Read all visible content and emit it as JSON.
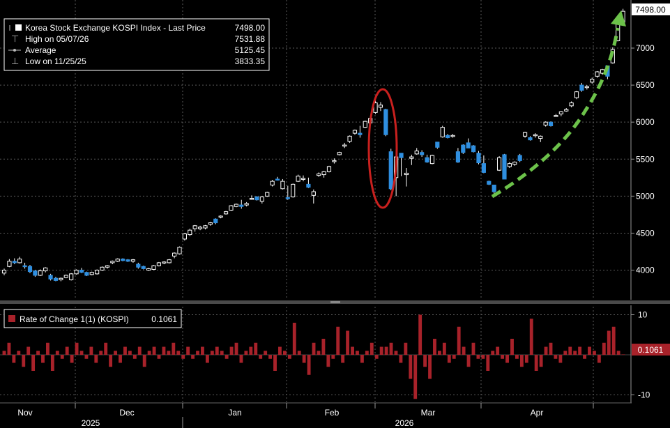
{
  "chart_data": [
    {
      "type": "candlestick",
      "title": "Korea Stock Exchange KOSPI Index - Last Price",
      "last_price": "7498.00",
      "last_price_tag": "7498.00",
      "legend": {
        "last_label": "Korea Stock Exchange KOSPI Index - Last Price",
        "last_value": "7498.00",
        "high_label": "High on 05/07/26",
        "high_value": "7531.88",
        "avg_label": "Average",
        "avg_value": "5125.45",
        "low_label": "Low on 11/25/25",
        "low_value": "3833.35"
      },
      "ylim": [
        3600,
        7650
      ],
      "yticks": [
        "4000",
        "4500",
        "5000",
        "5500",
        "6000",
        "6500",
        "7000"
      ],
      "ytick_values": [
        4000,
        4500,
        5000,
        5500,
        6000,
        6500,
        7000
      ],
      "grid": true,
      "colors": {
        "up": "#ffffff",
        "down": "#2f8fe0",
        "circle": "#c8201e",
        "arrow": "#6cc24a"
      },
      "candles": [
        {
          "o": 3960,
          "h": 4020,
          "l": 3930,
          "c": 4000
        },
        {
          "o": 4050,
          "h": 4150,
          "l": 4040,
          "c": 4120
        },
        {
          "o": 4120,
          "h": 4160,
          "l": 4080,
          "c": 4100
        },
        {
          "o": 4100,
          "h": 4180,
          "l": 4090,
          "c": 4150
        },
        {
          "o": 4060,
          "h": 4100,
          "l": 4020,
          "c": 4050
        },
        {
          "o": 4050,
          "h": 4070,
          "l": 3960,
          "c": 3980
        },
        {
          "o": 3990,
          "h": 4000,
          "l": 3910,
          "c": 3930
        },
        {
          "o": 3930,
          "h": 4010,
          "l": 3920,
          "c": 3990
        },
        {
          "o": 3990,
          "h": 4040,
          "l": 3970,
          "c": 4030
        },
        {
          "o": 3930,
          "h": 3950,
          "l": 3860,
          "c": 3880
        },
        {
          "o": 3890,
          "h": 3910,
          "l": 3850,
          "c": 3860
        },
        {
          "o": 3870,
          "h": 3900,
          "l": 3850,
          "c": 3890
        },
        {
          "o": 3900,
          "h": 3940,
          "l": 3890,
          "c": 3930
        },
        {
          "o": 3870,
          "h": 3960,
          "l": 3860,
          "c": 3950
        },
        {
          "o": 3950,
          "h": 4010,
          "l": 3940,
          "c": 4000
        },
        {
          "o": 4000,
          "h": 4030,
          "l": 3960,
          "c": 3970
        },
        {
          "o": 3970,
          "h": 3980,
          "l": 3920,
          "c": 3930
        },
        {
          "o": 3940,
          "h": 3980,
          "l": 3930,
          "c": 3970
        },
        {
          "o": 3950,
          "h": 4010,
          "l": 3940,
          "c": 4000
        },
        {
          "o": 4000,
          "h": 4050,
          "l": 3990,
          "c": 4040
        },
        {
          "o": 4040,
          "h": 4070,
          "l": 4020,
          "c": 4060
        },
        {
          "o": 4100,
          "h": 4130,
          "l": 4080,
          "c": 4120
        },
        {
          "o": 4120,
          "h": 4160,
          "l": 4110,
          "c": 4150
        },
        {
          "o": 4150,
          "h": 4160,
          "l": 4120,
          "c": 4130
        },
        {
          "o": 4140,
          "h": 4150,
          "l": 4110,
          "c": 4120
        },
        {
          "o": 4120,
          "h": 4150,
          "l": 4100,
          "c": 4140
        },
        {
          "o": 4080,
          "h": 4100,
          "l": 4020,
          "c": 4040
        },
        {
          "o": 4050,
          "h": 4060,
          "l": 4010,
          "c": 4020
        },
        {
          "o": 4000,
          "h": 4030,
          "l": 3990,
          "c": 4020
        },
        {
          "o": 4010,
          "h": 4070,
          "l": 4000,
          "c": 4060
        },
        {
          "o": 4060,
          "h": 4110,
          "l": 4050,
          "c": 4100
        },
        {
          "o": 4100,
          "h": 4120,
          "l": 4080,
          "c": 4110
        },
        {
          "o": 4100,
          "h": 4150,
          "l": 4090,
          "c": 4140
        },
        {
          "o": 4190,
          "h": 4240,
          "l": 4160,
          "c": 4230
        },
        {
          "o": 4220,
          "h": 4320,
          "l": 4210,
          "c": 4310
        },
        {
          "o": 4420,
          "h": 4500,
          "l": 4400,
          "c": 4490
        },
        {
          "o": 4480,
          "h": 4560,
          "l": 4460,
          "c": 4540
        },
        {
          "o": 4560,
          "h": 4610,
          "l": 4520,
          "c": 4600
        },
        {
          "o": 4560,
          "h": 4600,
          "l": 4540,
          "c": 4580
        },
        {
          "o": 4570,
          "h": 4610,
          "l": 4550,
          "c": 4600
        },
        {
          "o": 4620,
          "h": 4650,
          "l": 4600,
          "c": 4640
        },
        {
          "o": 4690,
          "h": 4700,
          "l": 4620,
          "c": 4640
        },
        {
          "o": 4720,
          "h": 4740,
          "l": 4700,
          "c": 4730
        },
        {
          "o": 4760,
          "h": 4800,
          "l": 4750,
          "c": 4790
        },
        {
          "o": 4810,
          "h": 4880,
          "l": 4800,
          "c": 4870
        },
        {
          "o": 4860,
          "h": 4900,
          "l": 4850,
          "c": 4890
        },
        {
          "o": 4880,
          "h": 4950,
          "l": 4830,
          "c": 4860
        },
        {
          "o": 4880,
          "h": 4920,
          "l": 4860,
          "c": 4900
        },
        {
          "o": 4960,
          "h": 5010,
          "l": 4950,
          "c": 4970
        },
        {
          "o": 4990,
          "h": 5000,
          "l": 4940,
          "c": 4950
        },
        {
          "o": 4930,
          "h": 5000,
          "l": 4900,
          "c": 4990
        },
        {
          "o": 5000,
          "h": 5060,
          "l": 4990,
          "c": 5050
        },
        {
          "o": 5150,
          "h": 5220,
          "l": 5130,
          "c": 5200
        },
        {
          "o": 5230,
          "h": 5260,
          "l": 5210,
          "c": 5220
        },
        {
          "o": 5100,
          "h": 5230,
          "l": 5090,
          "c": 5200
        },
        {
          "o": 4980,
          "h": 5140,
          "l": 4950,
          "c": 4970
        },
        {
          "o": 4990,
          "h": 5170,
          "l": 4980,
          "c": 5160
        },
        {
          "o": 5200,
          "h": 5290,
          "l": 5190,
          "c": 5270
        },
        {
          "o": 5230,
          "h": 5280,
          "l": 5200,
          "c": 5240
        },
        {
          "o": 5160,
          "h": 5250,
          "l": 5110,
          "c": 5120
        },
        {
          "o": 5010,
          "h": 5090,
          "l": 4900,
          "c": 5060
        },
        {
          "o": 5280,
          "h": 5320,
          "l": 5260,
          "c": 5300
        },
        {
          "o": 5290,
          "h": 5340,
          "l": 5250,
          "c": 5330
        },
        {
          "o": 5330,
          "h": 5410,
          "l": 5320,
          "c": 5400
        },
        {
          "o": 5470,
          "h": 5510,
          "l": 5440,
          "c": 5480
        },
        {
          "o": 5560,
          "h": 5600,
          "l": 5550,
          "c": 5590
        },
        {
          "o": 5680,
          "h": 5720,
          "l": 5650,
          "c": 5690
        },
        {
          "o": 5740,
          "h": 5820,
          "l": 5720,
          "c": 5810
        },
        {
          "o": 5850,
          "h": 5900,
          "l": 5830,
          "c": 5890
        },
        {
          "o": 5850,
          "h": 5950,
          "l": 5790,
          "c": 5830
        },
        {
          "o": 5930,
          "h": 6020,
          "l": 5920,
          "c": 6010
        },
        {
          "o": 5990,
          "h": 6080,
          "l": 5970,
          "c": 6050
        },
        {
          "o": 6130,
          "h": 6290,
          "l": 6110,
          "c": 6260
        },
        {
          "o": 6200,
          "h": 6270,
          "l": 6150,
          "c": 6230
        },
        {
          "o": 6170,
          "h": 6180,
          "l": 5810,
          "c": 5830
        },
        {
          "o": 5600,
          "h": 5640,
          "l": 5080,
          "c": 5100
        },
        {
          "o": 5250,
          "h": 5610,
          "l": 5000,
          "c": 5530
        },
        {
          "o": 5580,
          "h": 5570,
          "l": 5270,
          "c": 5520
        },
        {
          "o": 5290,
          "h": 5380,
          "l": 5130,
          "c": 5310
        },
        {
          "o": 5510,
          "h": 5560,
          "l": 5420,
          "c": 5530
        },
        {
          "o": 5570,
          "h": 5650,
          "l": 5560,
          "c": 5610
        },
        {
          "o": 5590,
          "h": 5620,
          "l": 5530,
          "c": 5560
        },
        {
          "o": 5520,
          "h": 5560,
          "l": 5450,
          "c": 5460
        },
        {
          "o": 5440,
          "h": 5560,
          "l": 5430,
          "c": 5550
        },
        {
          "o": 5730,
          "h": 5700,
          "l": 5640,
          "c": 5660
        },
        {
          "o": 5800,
          "h": 5950,
          "l": 5790,
          "c": 5930
        },
        {
          "o": 5820,
          "h": 5840,
          "l": 5780,
          "c": 5790
        },
        {
          "o": 5810,
          "h": 5840,
          "l": 5790,
          "c": 5820
        },
        {
          "o": 5600,
          "h": 5650,
          "l": 5450,
          "c": 5460
        },
        {
          "o": 5690,
          "h": 5700,
          "l": 5570,
          "c": 5590
        },
        {
          "o": 5720,
          "h": 5780,
          "l": 5650,
          "c": 5650
        },
        {
          "o": 5680,
          "h": 5690,
          "l": 5590,
          "c": 5600
        },
        {
          "o": 5580,
          "h": 5610,
          "l": 5430,
          "c": 5450
        },
        {
          "o": 5440,
          "h": 5550,
          "l": 5310,
          "c": 5320
        },
        {
          "o": 5200,
          "h": 5210,
          "l": 5150,
          "c": 5160
        },
        {
          "o": 5150,
          "h": 5130,
          "l": 5030,
          "c": 5060
        },
        {
          "o": 5350,
          "h": 5540,
          "l": 5340,
          "c": 5520
        },
        {
          "o": 5560,
          "h": 5570,
          "l": 5230,
          "c": 5230
        },
        {
          "o": 5400,
          "h": 5460,
          "l": 5380,
          "c": 5440
        },
        {
          "o": 5430,
          "h": 5470,
          "l": 5410,
          "c": 5460
        },
        {
          "o": 5550,
          "h": 5570,
          "l": 5460,
          "c": 5480
        },
        {
          "o": 5810,
          "h": 5870,
          "l": 5790,
          "c": 5860
        },
        {
          "o": 5790,
          "h": 5810,
          "l": 5750,
          "c": 5760
        },
        {
          "o": 5820,
          "h": 5850,
          "l": 5790,
          "c": 5830
        },
        {
          "o": 5780,
          "h": 5820,
          "l": 5730,
          "c": 5810
        },
        {
          "o": 5960,
          "h": 6010,
          "l": 5940,
          "c": 6000
        },
        {
          "o": 6000,
          "h": 6010,
          "l": 5940,
          "c": 5950
        },
        {
          "o": 6080,
          "h": 6110,
          "l": 6070,
          "c": 6090
        },
        {
          "o": 6110,
          "h": 6150,
          "l": 6080,
          "c": 6140
        },
        {
          "o": 6150,
          "h": 6190,
          "l": 6140,
          "c": 6170
        },
        {
          "o": 6220,
          "h": 6280,
          "l": 6200,
          "c": 6260
        },
        {
          "o": 6330,
          "h": 6420,
          "l": 6310,
          "c": 6410
        },
        {
          "o": 6500,
          "h": 6530,
          "l": 6410,
          "c": 6430
        },
        {
          "o": 6470,
          "h": 6500,
          "l": 6440,
          "c": 6480
        },
        {
          "o": 6540,
          "h": 6600,
          "l": 6520,
          "c": 6580
        },
        {
          "o": 6620,
          "h": 6690,
          "l": 6600,
          "c": 6680
        },
        {
          "o": 6660,
          "h": 6720,
          "l": 6640,
          "c": 6710
        },
        {
          "o": 6760,
          "h": 6720,
          "l": 6580,
          "c": 6620
        },
        {
          "o": 6800,
          "h": 7010,
          "l": 6790,
          "c": 6980
        },
        {
          "o": 7100,
          "h": 7430,
          "l": 7090,
          "c": 7400
        },
        {
          "o": 7350,
          "h": 7531,
          "l": 7320,
          "c": 7498
        }
      ]
    },
    {
      "type": "bar",
      "title": "Rate of Change 1(1) (KOSPI)",
      "legend_label": "Rate of Change 1(1) (KOSPI)",
      "legend_value": "0.1061",
      "last_value_tag": "0.1061",
      "ylim": [
        -12,
        12
      ],
      "yticks": [
        "10",
        "-10"
      ],
      "ytick_values": [
        10,
        -10
      ],
      "color": "#a8222a",
      "values": [
        1,
        3,
        -2,
        1,
        -3,
        2,
        -4,
        1,
        -2,
        3,
        -4,
        1,
        -1,
        2,
        -2,
        3,
        1,
        -1,
        2,
        -2,
        1,
        3,
        -3,
        1,
        -2,
        2,
        1,
        -1,
        2,
        -3,
        1,
        2,
        -1,
        2,
        1,
        3,
        1,
        -1,
        2,
        -1,
        1,
        2,
        -2,
        1,
        2,
        1,
        -1,
        2,
        3,
        -2,
        1,
        2,
        3,
        -1,
        1,
        -1,
        -4,
        2,
        1,
        -1,
        8,
        1,
        -2,
        -5,
        3,
        1,
        4,
        -3,
        -1,
        7,
        -2,
        6,
        2,
        1,
        -2,
        1,
        3,
        -1,
        2,
        2,
        3,
        1,
        -2,
        3,
        -6,
        -11,
        10,
        -3,
        -6,
        4,
        1,
        3,
        -2,
        -1,
        7,
        2,
        -3,
        3,
        -1,
        -1,
        -4,
        1,
        2,
        -1,
        -2,
        4,
        -1,
        -3,
        -2,
        9,
        -4,
        -3,
        2,
        3,
        -1,
        -2,
        1,
        2,
        1,
        2,
        -1,
        2,
        1,
        -2,
        3,
        6,
        7,
        1,
        0.1
      ]
    },
    {
      "type": "axis",
      "months": [
        "Nov",
        "Dec",
        "Jan",
        "Feb",
        "Mar",
        "Apr"
      ],
      "years": [
        "2025",
        "2026"
      ]
    }
  ]
}
